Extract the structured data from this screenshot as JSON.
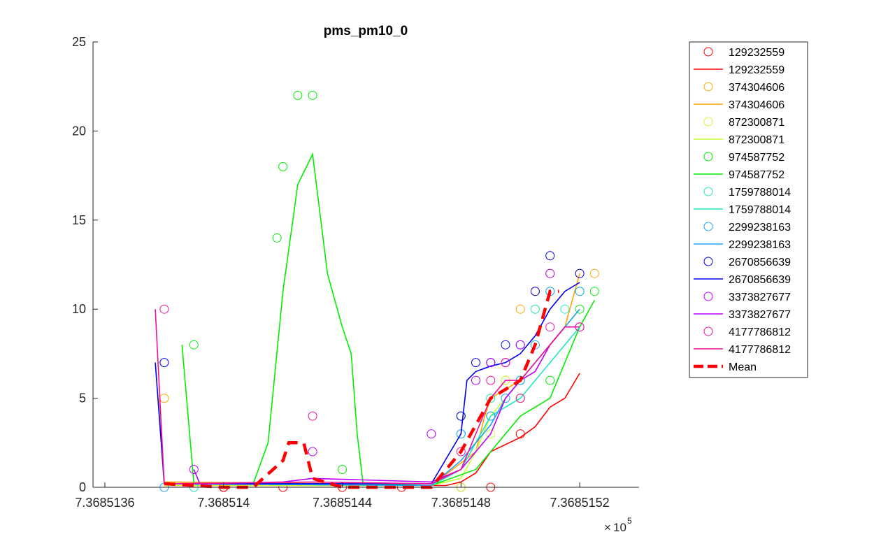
{
  "chart_data": {
    "type": "scatter",
    "title": "pms_pm10_0",
    "xlabel": "",
    "ylabel": "",
    "x_exponent_label": "10",
    "x_exponent_power": "5",
    "xlim": [
      7.36851356,
      7.3685154
    ],
    "ylim": [
      0,
      25
    ],
    "x_ticks": [
      {
        "value": 7.3685136,
        "label": "7.3685136"
      },
      {
        "value": 7.368514,
        "label": "7.368514"
      },
      {
        "value": 7.3685144,
        "label": "7.3685144"
      },
      {
        "value": 7.3685148,
        "label": "7.3685148"
      },
      {
        "value": 7.3685152,
        "label": "7.3685152"
      }
    ],
    "y_ticks": [
      {
        "value": 0,
        "label": "0"
      },
      {
        "value": 5,
        "label": "5"
      },
      {
        "value": 10,
        "label": "10"
      },
      {
        "value": 15,
        "label": "15"
      },
      {
        "value": 20,
        "label": "20"
      },
      {
        "value": 25,
        "label": "25"
      }
    ],
    "grid": false,
    "legend_position": "outside-top-right",
    "series": [
      {
        "name": "129232559",
        "color": "#ff0000",
        "points": [
          [
            7.368514,
            0
          ],
          [
            7.368514,
            0
          ],
          [
            7.368514,
            0
          ],
          [
            7.3685142,
            0
          ],
          [
            7.3685144,
            0
          ],
          [
            7.3685146,
            0
          ],
          [
            7.3685148,
            0
          ],
          [
            7.3685149,
            0
          ],
          [
            7.368515,
            3
          ]
        ],
        "line": [
          [
            7.3685138,
            0.1
          ],
          [
            7.368514,
            0.1
          ],
          [
            7.3685144,
            0.1
          ],
          [
            7.36851475,
            0.1
          ],
          [
            7.3685148,
            0.3
          ],
          [
            7.36851485,
            0.8
          ],
          [
            7.3685149,
            2
          ],
          [
            7.368515,
            2.8
          ],
          [
            7.36851505,
            3.4
          ],
          [
            7.3685151,
            4.5
          ],
          [
            7.36851515,
            5.0
          ],
          [
            7.3685152,
            6.4
          ]
        ]
      },
      {
        "name": "374304606",
        "color": "#ffa500",
        "points": [
          [
            7.3685138,
            5
          ],
          [
            7.3685148,
            4
          ],
          [
            7.3685149,
            5
          ],
          [
            7.36851495,
            6
          ],
          [
            7.368515,
            10
          ],
          [
            7.36851505,
            11
          ],
          [
            7.3685151,
            12
          ],
          [
            7.3685152,
            12
          ],
          [
            7.36851525,
            12
          ]
        ],
        "line": [
          [
            7.36851378,
            5
          ],
          [
            7.3685138,
            0.3
          ],
          [
            7.3685144,
            0.2
          ],
          [
            7.3685147,
            0.1
          ],
          [
            7.36851485,
            2
          ],
          [
            7.36851488,
            4
          ],
          [
            7.3685149,
            5
          ],
          [
            7.368515,
            6
          ],
          [
            7.36851505,
            7
          ],
          [
            7.3685151,
            8
          ],
          [
            7.36851515,
            9
          ],
          [
            7.3685152,
            12
          ]
        ]
      },
      {
        "name": "872300871",
        "color": "#ccff33",
        "points": [
          [
            7.3685148,
            0
          ],
          [
            7.3685149,
            3
          ],
          [
            7.36851495,
            6
          ],
          [
            7.368515,
            6
          ],
          [
            7.36851505,
            10
          ],
          [
            7.3685151,
            11
          ],
          [
            7.3685152,
            11
          ]
        ],
        "line": [
          [
            7.3685138,
            0.1
          ],
          [
            7.3685147,
            0.1
          ],
          [
            7.3685148,
            0.5
          ],
          [
            7.36851485,
            2
          ],
          [
            7.3685149,
            4
          ],
          [
            7.36851495,
            5
          ],
          [
            7.368515,
            6
          ],
          [
            7.36851505,
            7
          ],
          [
            7.3685151,
            8
          ],
          [
            7.3685152,
            10
          ]
        ]
      },
      {
        "name": "974587752",
        "color": "#00ee00",
        "points": [
          [
            7.3685139,
            8
          ],
          [
            7.36851418,
            14
          ],
          [
            7.3685142,
            18
          ],
          [
            7.36851425,
            22
          ],
          [
            7.3685143,
            22
          ],
          [
            7.3685144,
            1
          ],
          [
            7.3685148,
            4
          ],
          [
            7.3685149,
            4
          ],
          [
            7.368515,
            5
          ],
          [
            7.3685151,
            6
          ],
          [
            7.3685152,
            10
          ],
          [
            7.36851525,
            11
          ]
        ],
        "line": [
          [
            7.36851386,
            8
          ],
          [
            7.3685139,
            0.2
          ],
          [
            7.3685141,
            0.2
          ],
          [
            7.36851415,
            2.5
          ],
          [
            7.3685142,
            11
          ],
          [
            7.36851425,
            17
          ],
          [
            7.3685143,
            18.7
          ],
          [
            7.36851435,
            12
          ],
          [
            7.3685144,
            9
          ],
          [
            7.36851443,
            7.5
          ],
          [
            7.36851445,
            3
          ],
          [
            7.36851447,
            0.2
          ],
          [
            7.3685147,
            0.1
          ],
          [
            7.36851485,
            1
          ],
          [
            7.3685149,
            2
          ],
          [
            7.368515,
            4
          ],
          [
            7.3685151,
            5
          ],
          [
            7.36851515,
            7
          ],
          [
            7.3685152,
            9
          ],
          [
            7.36851525,
            10.5
          ]
        ]
      },
      {
        "name": "1759788014",
        "color": "#1fe8c0",
        "points": [
          [
            7.3685139,
            0
          ],
          [
            7.3685148,
            3
          ],
          [
            7.3685149,
            5
          ],
          [
            7.368515,
            6
          ],
          [
            7.36851505,
            10
          ],
          [
            7.3685151,
            11
          ],
          [
            7.36851515,
            10
          ],
          [
            7.3685152,
            11
          ]
        ],
        "line": [
          [
            7.3685139,
            1
          ],
          [
            7.36851392,
            0.2
          ],
          [
            7.3685147,
            0.1
          ],
          [
            7.3685148,
            1
          ],
          [
            7.36851485,
            2.5
          ],
          [
            7.3685149,
            4
          ],
          [
            7.368515,
            5
          ],
          [
            7.36851505,
            6
          ],
          [
            7.3685151,
            7
          ],
          [
            7.36851515,
            8
          ],
          [
            7.3685152,
            9
          ]
        ]
      },
      {
        "name": "2299238163",
        "color": "#1ea0ff",
        "points": [
          [
            7.3685138,
            0
          ],
          [
            7.3685148,
            3
          ],
          [
            7.3685149,
            4
          ],
          [
            7.36851495,
            5
          ],
          [
            7.368515,
            6
          ],
          [
            7.36851505,
            8
          ],
          [
            7.3685151,
            11
          ],
          [
            7.3685152,
            11
          ]
        ],
        "line": [
          [
            7.3685138,
            0.2
          ],
          [
            7.3685147,
            0.1
          ],
          [
            7.3685148,
            1.5
          ],
          [
            7.36851485,
            2.5
          ],
          [
            7.3685149,
            3.5
          ],
          [
            7.36851495,
            5
          ],
          [
            7.368515,
            6
          ],
          [
            7.36851505,
            7
          ],
          [
            7.3685151,
            8
          ],
          [
            7.36851515,
            9
          ],
          [
            7.3685152,
            10
          ]
        ]
      },
      {
        "name": "2670856639",
        "color": "#0000ee",
        "points": [
          [
            7.3685138,
            7
          ],
          [
            7.3685148,
            4
          ],
          [
            7.36851485,
            7
          ],
          [
            7.3685149,
            7
          ],
          [
            7.36851495,
            8
          ],
          [
            7.368515,
            8
          ],
          [
            7.36851505,
            11
          ],
          [
            7.3685151,
            13
          ],
          [
            7.3685152,
            12
          ]
        ],
        "line": [
          [
            7.36851377,
            7
          ],
          [
            7.3685138,
            0.2
          ],
          [
            7.3685147,
            0.2
          ],
          [
            7.3685148,
            3
          ],
          [
            7.36851482,
            6
          ],
          [
            7.36851485,
            6.5
          ],
          [
            7.3685149,
            6.8
          ],
          [
            7.36851495,
            7
          ],
          [
            7.368515,
            7.5
          ],
          [
            7.36851505,
            8.5
          ],
          [
            7.3685151,
            10
          ],
          [
            7.36851515,
            11
          ],
          [
            7.3685152,
            11.5
          ]
        ]
      },
      {
        "name": "3373827677",
        "color": "#bb00ff",
        "points": [
          [
            7.3685139,
            1
          ],
          [
            7.3685143,
            2
          ],
          [
            7.3685147,
            3
          ],
          [
            7.36851485,
            6
          ],
          [
            7.3685149,
            7
          ],
          [
            7.36851495,
            7
          ],
          [
            7.368515,
            8
          ],
          [
            7.3685151,
            12
          ],
          [
            7.3685152,
            9
          ]
        ],
        "line": [
          [
            7.3685139,
            1
          ],
          [
            7.36851392,
            0.2
          ],
          [
            7.3685142,
            0.3
          ],
          [
            7.3685143,
            0.5
          ],
          [
            7.3685147,
            0.3
          ],
          [
            7.3685148,
            1
          ],
          [
            7.3685149,
            3
          ],
          [
            7.36851495,
            5
          ],
          [
            7.368515,
            6
          ],
          [
            7.36851505,
            6.5
          ],
          [
            7.3685151,
            8
          ],
          [
            7.36851515,
            9
          ],
          [
            7.3685152,
            9
          ]
        ]
      },
      {
        "name": "4177786812",
        "color": "#ee1199",
        "points": [
          [
            7.3685138,
            10
          ],
          [
            7.3685143,
            4
          ],
          [
            7.3685148,
            2
          ],
          [
            7.3685149,
            6
          ],
          [
            7.36851495,
            7
          ],
          [
            7.368515,
            5
          ],
          [
            7.3685151,
            9
          ],
          [
            7.3685152,
            9
          ]
        ],
        "line": [
          [
            7.36851377,
            10
          ],
          [
            7.3685138,
            0.2
          ],
          [
            7.3685143,
            0.3
          ],
          [
            7.3685147,
            0.2
          ],
          [
            7.3685148,
            1
          ],
          [
            7.36851485,
            3
          ],
          [
            7.3685149,
            5
          ],
          [
            7.36851495,
            6
          ],
          [
            7.368515,
            6
          ],
          [
            7.36851505,
            7
          ],
          [
            7.3685151,
            8
          ],
          [
            7.36851515,
            9
          ],
          [
            7.3685152,
            9
          ]
        ]
      },
      {
        "name": "Mean",
        "color": "#ff0000",
        "dashed": true,
        "points": [],
        "line": [
          [
            7.3685138,
            0.2
          ],
          [
            7.368514,
            0
          ],
          [
            7.3685141,
            0
          ],
          [
            7.3685142,
            1.5
          ],
          [
            7.36851422,
            2.5
          ],
          [
            7.36851427,
            2.5
          ],
          [
            7.3685143,
            0.5
          ],
          [
            7.3685144,
            0
          ],
          [
            7.3685147,
            0
          ],
          [
            7.3685148,
            2
          ],
          [
            7.3685149,
            5
          ],
          [
            7.36851495,
            5.5
          ],
          [
            7.368515,
            6
          ],
          [
            7.36851505,
            8
          ],
          [
            7.3685151,
            11
          ],
          [
            7.36851513,
            11
          ]
        ]
      }
    ],
    "legend_entries": [
      {
        "label": "129232559",
        "kind": "marker",
        "series": 0
      },
      {
        "label": "129232559",
        "kind": "line",
        "series": 0
      },
      {
        "label": "374304606",
        "kind": "marker",
        "series": 1
      },
      {
        "label": "374304606",
        "kind": "line",
        "series": 1
      },
      {
        "label": "872300871",
        "kind": "marker",
        "series": 2
      },
      {
        "label": "872300871",
        "kind": "line",
        "series": 2
      },
      {
        "label": "974587752",
        "kind": "marker",
        "series": 3
      },
      {
        "label": "974587752",
        "kind": "line",
        "series": 3
      },
      {
        "label": "1759788014",
        "kind": "marker",
        "series": 4
      },
      {
        "label": "1759788014",
        "kind": "line",
        "series": 4
      },
      {
        "label": "2299238163",
        "kind": "marker",
        "series": 5
      },
      {
        "label": "2299238163",
        "kind": "line",
        "series": 5
      },
      {
        "label": "2670856639",
        "kind": "marker",
        "series": 6
      },
      {
        "label": "2670856639",
        "kind": "line",
        "series": 6
      },
      {
        "label": "3373827677",
        "kind": "marker",
        "series": 7
      },
      {
        "label": "3373827677",
        "kind": "line",
        "series": 7
      },
      {
        "label": "4177786812",
        "kind": "marker",
        "series": 8
      },
      {
        "label": "4177786812",
        "kind": "line",
        "series": 8
      },
      {
        "label": "Mean",
        "kind": "dashed",
        "series": 9
      }
    ]
  }
}
